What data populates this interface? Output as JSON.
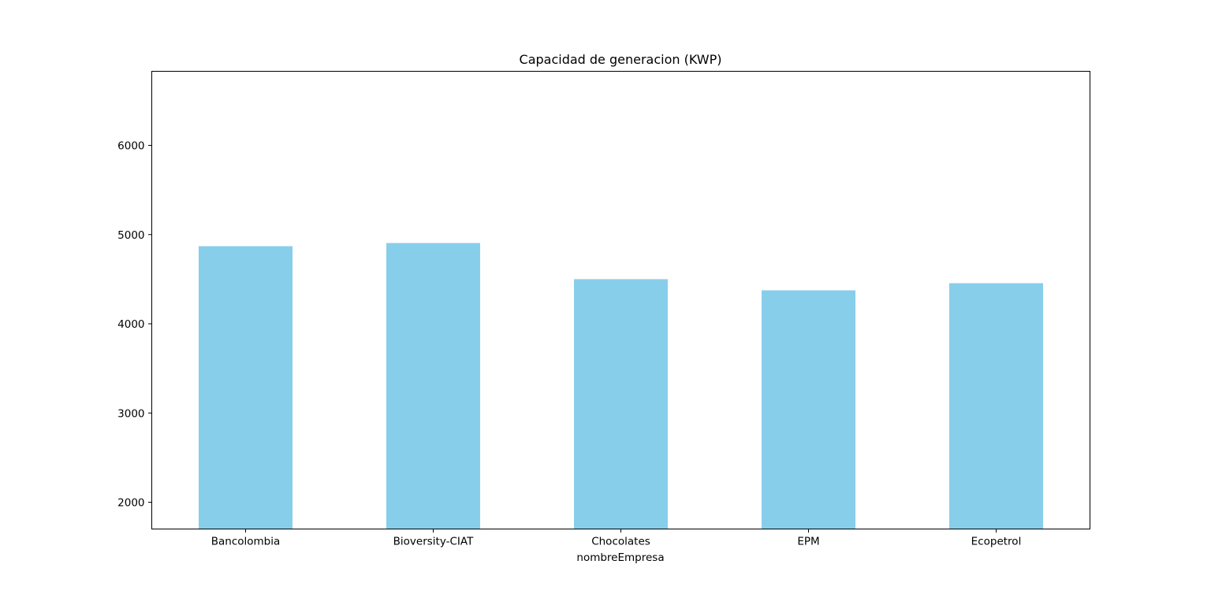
{
  "chart_data": {
    "type": "bar",
    "title": "Capacidad de generacion (KWP)",
    "xlabel": "nombreEmpresa",
    "ylabel": "",
    "categories": [
      "Bancolombia",
      "Bioversity-CIAT",
      "Chocolates",
      "EPM",
      "Ecopetrol"
    ],
    "values": [
      4870,
      4905,
      4500,
      4375,
      4455
    ],
    "ylim": [
      1700,
      6830
    ],
    "yticks": [
      2000,
      3000,
      4000,
      5000,
      6000
    ],
    "ytick_labels": [
      "2000",
      "3000",
      "4000",
      "5000",
      "6000"
    ],
    "bar_color": "#87ceeb",
    "grid": false,
    "legend": "none"
  }
}
